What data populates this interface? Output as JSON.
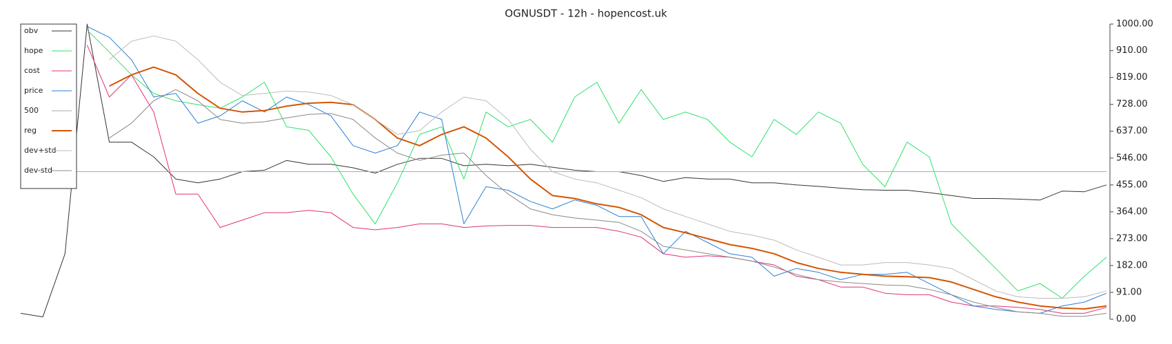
{
  "chart_data": {
    "type": "line",
    "title": "OGNUSDT - 12h - hopencost.uk",
    "categories": [
      null,
      null,
      null,
      null,
      null,
      null,
      null,
      null,
      null,
      null,
      null,
      null,
      null,
      null,
      null,
      null,
      null,
      null,
      null,
      null,
      null,
      null,
      null,
      null,
      null,
      null,
      null,
      null,
      null,
      null,
      null,
      null,
      null,
      null,
      null,
      null,
      null,
      null,
      null,
      null,
      null,
      null,
      null,
      null,
      null,
      null,
      null,
      null,
      null,
      null
    ],
    "ylim": [
      0,
      1000
    ],
    "yticks": [
      {
        "value": 0,
        "label": "0.00"
      },
      {
        "value": 91,
        "label": "91.00"
      },
      {
        "value": 182,
        "label": "182.00"
      },
      {
        "value": 273,
        "label": "273.00"
      },
      {
        "value": 364,
        "label": "364.00"
      },
      {
        "value": 455,
        "label": "455.00"
      },
      {
        "value": 546,
        "label": "546.00"
      },
      {
        "value": 637,
        "label": "637.00"
      },
      {
        "value": 728,
        "label": "728.00"
      },
      {
        "value": 819,
        "label": "819.00"
      },
      {
        "value": 910,
        "label": "910.00"
      },
      {
        "value": 1000,
        "label": "1000.00"
      }
    ],
    "legend": "upper left",
    "series": [
      {
        "name": "obv",
        "color": "#333333",
        "width": 1,
        "values": [
          20,
          8,
          222,
          1000,
          600,
          600,
          550,
          475,
          462,
          475,
          500,
          505,
          538,
          525,
          525,
          513,
          495,
          525,
          545,
          545,
          520,
          525,
          520,
          525,
          515,
          505,
          500,
          500,
          487,
          467,
          480,
          475,
          475,
          462,
          462,
          455,
          450,
          444,
          439,
          437,
          437,
          429,
          419,
          409,
          409,
          407,
          404,
          434,
          432,
          455
        ]
      },
      {
        "name": "hope",
        "color": "#2ee06a",
        "width": 1,
        "values": [
          null,
          null,
          null,
          980,
          905,
          828,
          765,
          740,
          727,
          715,
          753,
          803,
          652,
          640,
          550,
          424,
          323,
          462,
          626,
          652,
          475,
          702,
          652,
          677,
          600,
          753,
          803,
          664,
          778,
          677,
          702,
          677,
          600,
          550,
          677,
          626,
          702,
          664,
          525,
          449,
          600,
          550,
          323,
          247,
          172,
          96,
          121,
          71,
          146,
          210
        ]
      },
      {
        "name": "cost",
        "color": "#e0307a",
        "width": 1,
        "values": [
          null,
          null,
          null,
          929,
          753,
          828,
          702,
          424,
          424,
          311,
          336,
          361,
          361,
          369,
          361,
          311,
          303,
          311,
          323,
          323,
          311,
          316,
          318,
          318,
          311,
          311,
          311,
          298,
          278,
          222,
          210,
          215,
          210,
          197,
          184,
          146,
          134,
          109,
          109,
          88,
          83,
          83,
          58,
          45,
          45,
          40,
          33,
          20,
          20,
          40
        ]
      },
      {
        "name": "price",
        "color": "#2a7fd4",
        "width": 1,
        "values": [
          null,
          null,
          null,
          992,
          955,
          879,
          753,
          765,
          664,
          689,
          740,
          702,
          753,
          727,
          689,
          588,
          563,
          588,
          702,
          677,
          323,
          449,
          437,
          399,
          374,
          404,
          386,
          348,
          348,
          222,
          298,
          260,
          222,
          210,
          146,
          172,
          159,
          134,
          152,
          152,
          159,
          121,
          83,
          45,
          33,
          25,
          20,
          45,
          58,
          88
        ]
      },
      {
        "name": "500",
        "color": "#aaaaaa",
        "width": 1,
        "values": [
          500,
          500,
          500,
          500,
          500,
          500,
          500,
          500,
          500,
          500,
          500,
          500,
          500,
          500,
          500,
          500,
          500,
          500,
          500,
          500,
          500,
          500,
          500,
          500,
          500,
          500,
          500,
          500,
          500,
          500,
          500,
          500,
          500,
          500,
          500,
          500,
          500,
          500,
          500,
          500,
          500,
          500,
          500,
          500,
          500,
          500,
          500,
          500,
          500,
          500
        ]
      },
      {
        "name": "reg",
        "color": "#d35400",
        "width": 2,
        "values": [
          null,
          null,
          null,
          null,
          790,
          828,
          854,
          828,
          765,
          715,
          702,
          707,
          722,
          732,
          735,
          727,
          677,
          614,
          588,
          626,
          652,
          614,
          550,
          475,
          419,
          409,
          391,
          379,
          354,
          311,
          293,
          273,
          253,
          240,
          222,
          192,
          172,
          159,
          152,
          146,
          144,
          141,
          126,
          101,
          76,
          58,
          45,
          38,
          35,
          45
        ]
      },
      {
        "name": "dev+std",
        "color": "#bbbbbb",
        "width": 1,
        "values": [
          null,
          null,
          null,
          null,
          879,
          942,
          960,
          942,
          879,
          803,
          758,
          765,
          773,
          770,
          758,
          727,
          677,
          626,
          639,
          702,
          753,
          740,
          677,
          576,
          500,
          475,
          462,
          437,
          412,
          374,
          348,
          323,
          298,
          285,
          268,
          235,
          210,
          184,
          184,
          192,
          192,
          184,
          172,
          134,
          96,
          76,
          71,
          71,
          76,
          96
        ]
      },
      {
        "name": "dev-std",
        "color": "#888888",
        "width": 1,
        "values": [
          null,
          null,
          null,
          null,
          614,
          664,
          740,
          778,
          740,
          677,
          664,
          669,
          682,
          694,
          697,
          677,
          614,
          563,
          538,
          556,
          563,
          487,
          424,
          374,
          354,
          343,
          336,
          328,
          298,
          247,
          235,
          222,
          210,
          197,
          177,
          152,
          134,
          126,
          121,
          116,
          114,
          101,
          83,
          58,
          40,
          25,
          20,
          10,
          10,
          20
        ]
      }
    ]
  }
}
